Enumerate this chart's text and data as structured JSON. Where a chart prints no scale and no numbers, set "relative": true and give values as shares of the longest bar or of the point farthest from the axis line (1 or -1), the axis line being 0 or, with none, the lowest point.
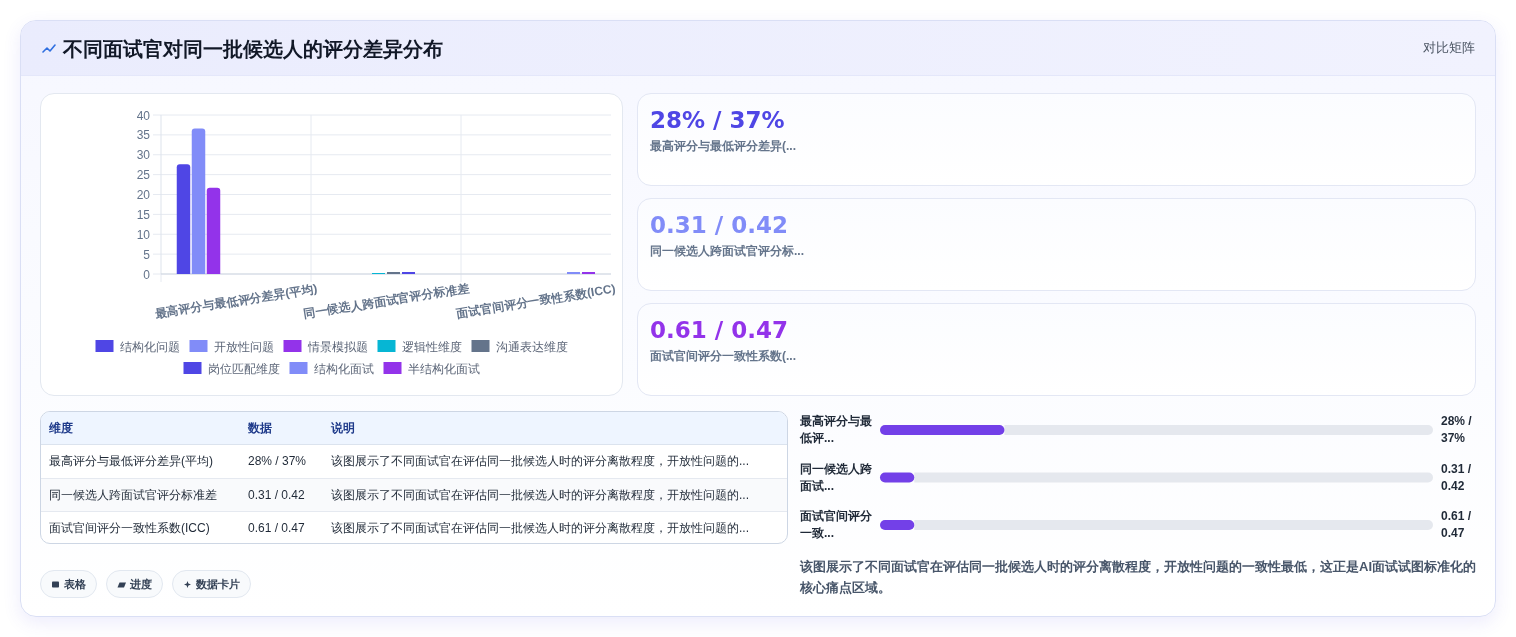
{
  "chart_data": [
    {
      "type": "other",
      "title": "不同面试官对同一批候选人的评分差异分布",
      "annotations": [
        "对比矩阵"
      ]
    },
    {
      "type": "bar",
      "categories": [
        "最高评分与最低评分差异(平均)",
        "同一候选人跨面试官评分标准差",
        "面试官间评分一致性系数(ICC)"
      ],
      "series": [
        {
          "name": "结构化问题",
          "color": "#4f46e5",
          "values": [
            27.6,
            null,
            null
          ]
        },
        {
          "name": "开放性问题",
          "color": "#818cf8",
          "values": [
            36.6,
            null,
            null
          ]
        },
        {
          "name": "情景模拟题",
          "color": "#9333ea",
          "values": [
            21.7,
            null,
            null
          ]
        },
        {
          "name": "逻辑性维度",
          "color": "#06b6d4",
          "values": [
            null,
            0.3,
            null
          ]
        },
        {
          "name": "沟通表达维度",
          "color": "#64748b",
          "values": [
            null,
            0.4,
            null
          ]
        },
        {
          "name": "岗位匹配维度",
          "color": "#4f46e5",
          "values": [
            null,
            0.4,
            null
          ]
        },
        {
          "name": "结构化面试",
          "color": "#818cf8",
          "values": [
            null,
            null,
            0.6
          ]
        },
        {
          "name": "半结构化面试",
          "color": "#9333ea",
          "values": [
            null,
            null,
            0.5
          ]
        }
      ],
      "ylim": [
        0,
        40
      ],
      "yticks": [
        0,
        5,
        10,
        15,
        20,
        25,
        30,
        35,
        40
      ],
      "grid": true,
      "legend": "bottom"
    },
    {
      "type": "other",
      "annotations": [
        "28% / 37%",
        "最高评分与最低评分差异(...",
        "0.31 / 0.42",
        "同一候选人跨面试官评分标...",
        "0.61 / 0.47",
        "面试官间评分一致性系数(..."
      ],
      "colors": [
        "#4f46e5",
        "#818cf8",
        "#9333ea"
      ]
    },
    {
      "type": "other",
      "categories": [
        "维度",
        "数据",
        "说明"
      ],
      "annotations": [
        "最高评分与最低评分差异(平均)",
        "28% / 37%",
        "该图展示了不同面试官在评估同一批候选人时的评分离散程度，开放性问题的...",
        "同一候选人跨面试官评分标准差",
        "0.31 / 0.42",
        "该图展示了不同面试官在评估同一批候选人时的评分离散程度，开放性问题的...",
        "面试官间评分一致性系数(ICC)",
        "0.61 / 0.47",
        "该图展示了不同面试官在评估同一批候选人时的评分离散程度，开放性问题的..."
      ]
    },
    {
      "type": "bar",
      "orientation": "horizontal",
      "stacked": true,
      "relative": true,
      "categories": [
        "最高评分与最低评...",
        "同一候选人跨面试...",
        "面试官间评分一致..."
      ],
      "series": [
        {
          "color": "#7340e8",
          "values": [
            0.225,
            0.062,
            0.062
          ]
        },
        {
          "color": "#e5e8ee",
          "values": [
            0.775,
            0.938,
            0.938
          ]
        }
      ],
      "annotations": [
        "28% / 37%",
        "0.31 / 0.42",
        "0.61 / 0.47",
        "该图展示了不同面试官在评估同一批候选人时的评分离散程度，开放性问题的一致性最低，这正是AI面试试图标准化的核心痛点区域。"
      ]
    },
    {
      "type": "other",
      "annotations": [
        "表格",
        "进度",
        "数据卡片"
      ]
    }
  ]
}
